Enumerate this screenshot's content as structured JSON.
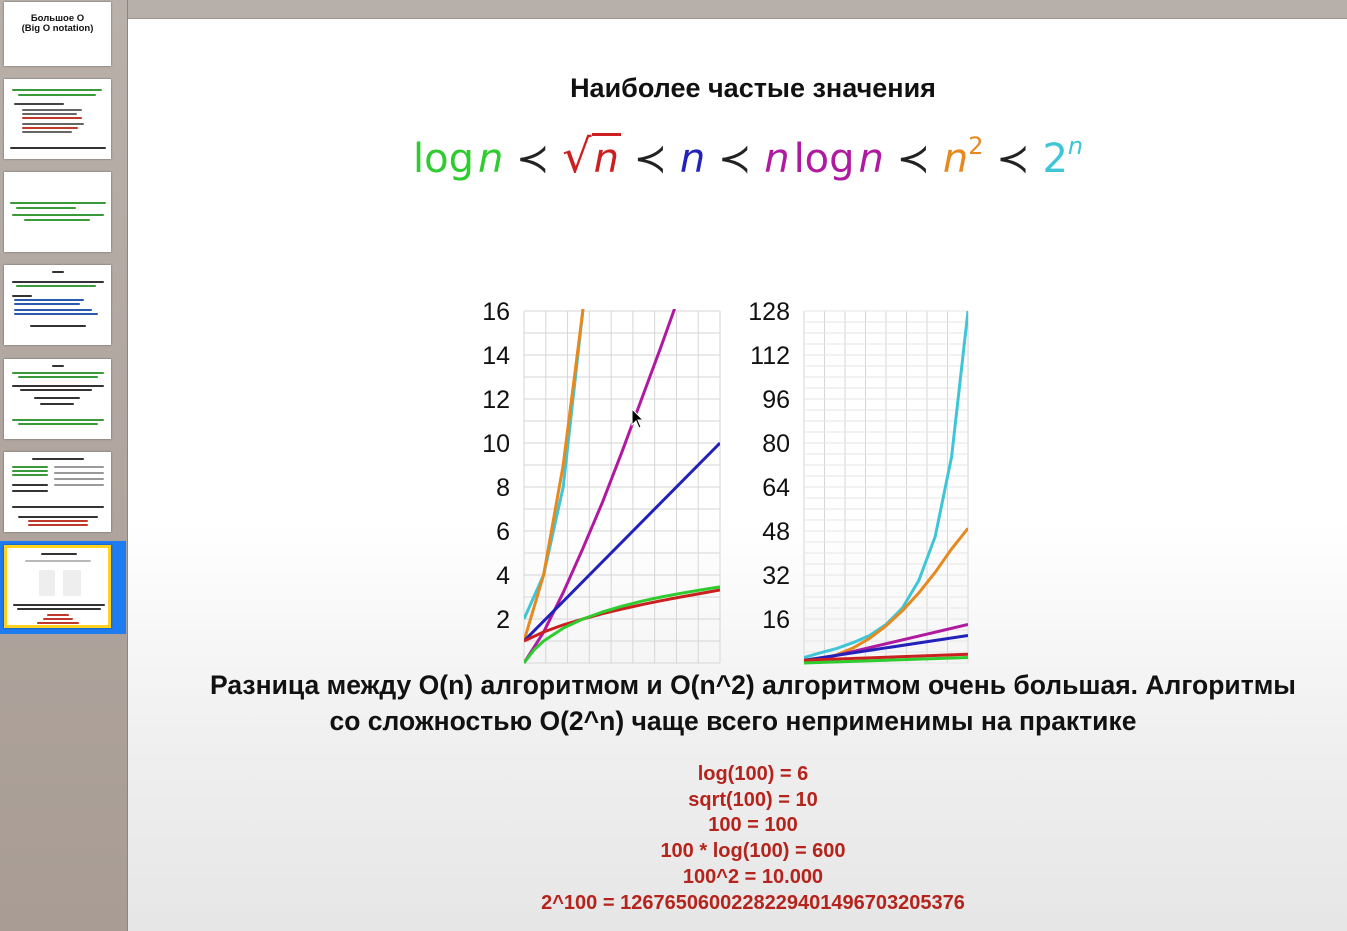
{
  "sidebar": {
    "slides": [
      {
        "title": "Большое О\n(Big O notation)"
      },
      {
        "title": ""
      },
      {
        "title": ""
      },
      {
        "title": ""
      },
      {
        "title": ""
      },
      {
        "title": ""
      },
      {
        "title": "",
        "selected": true
      }
    ]
  },
  "slide": {
    "title": "Наиболее частые значения",
    "formula": {
      "log": "log",
      "n": "n",
      "prec": "≺",
      "two": "2",
      "exp2": "2",
      "expn": "n",
      "colors": {
        "logn": "#2ecc2e",
        "sqrtn": "#cc1f1f",
        "n": "#2222bb",
        "nlogn": "#b01aa0",
        "n2": "#e6891f",
        "exp": "#3fc6d6"
      }
    },
    "chart_data": [
      {
        "type": "line",
        "xlim": [
          0,
          10
        ],
        "ylim": [
          0,
          16
        ],
        "yticks": [
          "2",
          "4",
          "6",
          "8",
          "10",
          "12",
          "14",
          "16"
        ],
        "grid": true,
        "series": [
          {
            "color": "#3fc6d6",
            "x": [
              0,
              1,
              2,
              3,
              4
            ],
            "y": [
              2,
              4,
              8,
              16,
              32
            ]
          },
          {
            "color": "#e6891f",
            "x": [
              0,
              1,
              2,
              3,
              4
            ],
            "y": [
              1,
              4,
              9,
              16,
              25
            ]
          },
          {
            "color": "#b01aa0",
            "x": [
              0,
              1,
              2,
              3,
              4,
              5,
              6,
              7,
              8
            ],
            "y": [
              0,
              1.4,
              3.2,
              5.2,
              7.3,
              9.6,
              12.0,
              14.4,
              16.9
            ]
          },
          {
            "color": "#2222bb",
            "x": [
              0,
              10
            ],
            "y": [
              1,
              10
            ]
          },
          {
            "color": "#cc1f1f",
            "x": [
              0,
              1,
              2,
              3,
              4,
              5,
              6,
              7,
              8,
              9,
              10
            ],
            "y": [
              1,
              1.41,
              1.73,
              2,
              2.24,
              2.45,
              2.65,
              2.83,
              3,
              3.16,
              3.32
            ]
          },
          {
            "color": "#2ecc2e",
            "x": [
              0,
              0.5,
              1,
              2,
              3,
              4,
              5,
              6,
              7,
              8,
              9,
              10
            ],
            "y": [
              0,
              0.58,
              1,
              1.58,
              2,
              2.32,
              2.58,
              2.81,
              3,
              3.17,
              3.32,
              3.46
            ]
          }
        ]
      },
      {
        "type": "line",
        "xlim": [
          0,
          10
        ],
        "ylim": [
          0,
          128
        ],
        "yticks": [
          "16",
          "32",
          "48",
          "64",
          "80",
          "96",
          "112",
          "128"
        ],
        "grid": true,
        "series": [
          {
            "color": "#3fc6d6",
            "x": [
              0,
              1,
              2,
              3,
              4,
              5,
              6,
              7,
              8,
              9,
              10
            ],
            "y": [
              2,
              3.7,
              5.3,
              7.4,
              10,
              14,
              20,
              30,
              46,
              75,
              128
            ]
          },
          {
            "color": "#e6891f",
            "x": [
              0,
              1,
              2,
              3,
              4,
              5,
              6,
              7,
              8,
              9,
              10
            ],
            "y": [
              1,
              1.5,
              3,
              5.5,
              9,
              13.5,
              19,
              25.5,
              33,
              41.5,
              49
            ]
          },
          {
            "color": "#b01aa0",
            "x": [
              0,
              10
            ],
            "y": [
              0,
              14
            ]
          },
          {
            "color": "#2222bb",
            "x": [
              0,
              10
            ],
            "y": [
              1,
              10
            ]
          },
          {
            "color": "#cc1f1f",
            "x": [
              0,
              10
            ],
            "y": [
              1,
              3.2
            ]
          },
          {
            "color": "#2ecc2e",
            "x": [
              0,
              10
            ],
            "y": [
              0,
              2
            ]
          }
        ]
      }
    ],
    "bottom_text": {
      "line1": "Разница между O(n) алгоритмом и O(n^2) алгоритмом очень большая. Алгоритмы",
      "line2": "со сложностью O(2^n) чаще всего неприменимы на практике"
    },
    "values": [
      "log(100) = 6",
      "sqrt(100) = 10",
      "100 = 100",
      "100 * log(100) = 600",
      "100^2 = 10.000",
      "2^100 = 1267650600228229401496703205376"
    ]
  }
}
